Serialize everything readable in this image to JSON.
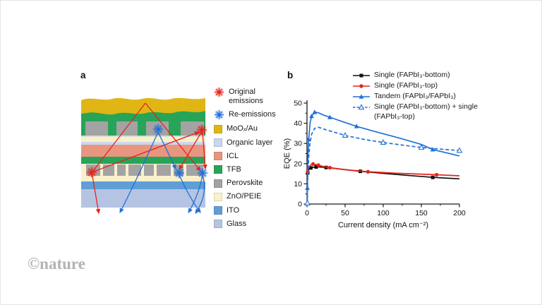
{
  "watermark": "©nature",
  "colors": {
    "emission_original": "#e8231c",
    "emission_re": "#2170d8",
    "moox_au": "#e0b614",
    "organic_layer": "#cbd7ee",
    "icl": "#e9957f",
    "tfb": "#27a457",
    "perovskite": "#a3a3a3",
    "zno_peie": "#faf0cc",
    "ito": "#5f9ed6",
    "glass": "#b5c4e3",
    "watermark": "#b3b3b3",
    "axis": "#1a1a1a"
  },
  "panel_a": {
    "label": "a",
    "emissions_legend": [
      {
        "label": "Original emissions",
        "color_key": "emission_original"
      },
      {
        "label": "Re-emissions",
        "color_key": "emission_re"
      }
    ],
    "layers_legend": [
      {
        "label": "MoOₓ/Au",
        "color_key": "moox_au"
      },
      {
        "label": "Organic layer",
        "color_key": "organic_layer"
      },
      {
        "label": "ICL",
        "color_key": "icl"
      },
      {
        "label": "TFB",
        "color_key": "tfb"
      },
      {
        "label": "Perovskite",
        "color_key": "perovskite"
      },
      {
        "label": "ZnO/PEIE",
        "color_key": "zno_peie"
      },
      {
        "label": "ITO",
        "color_key": "ito"
      },
      {
        "label": "Glass",
        "color_key": "glass"
      }
    ],
    "stack_order_top_to_bottom": [
      "MoOₓ/Au",
      "TFB",
      "Perovskite",
      "ZnO/PEIE",
      "Organic layer",
      "ICL",
      "TFB",
      "Perovskite",
      "ZnO/PEIE",
      "ITO",
      "Glass"
    ]
  },
  "panel_b": {
    "label": "b"
  },
  "chart_data": {
    "type": "line",
    "title": "",
    "xlabel": "Current density (mA cm⁻²)",
    "ylabel": "EQE (%)",
    "xlim": [
      0,
      200
    ],
    "ylim": [
      0,
      50
    ],
    "xticks": [
      0,
      50,
      100,
      150,
      200
    ],
    "yticks": [
      0,
      10,
      20,
      30,
      40,
      50
    ],
    "x_minor_ticks": [
      25,
      75,
      125,
      175
    ],
    "y_minor_ticks": [
      5,
      15,
      25,
      35,
      45
    ],
    "grid": false,
    "legend_position": "top-right",
    "series": [
      {
        "name": "Single (FAPbI₃-bottom)",
        "color": "#111111",
        "marker": "square",
        "line": "solid",
        "x": [
          0.8,
          1,
          1.5,
          2.5,
          4,
          6,
          10,
          15,
          25,
          40,
          70,
          100,
          135,
          165,
          200
        ],
        "y": [
          13.5,
          15.5,
          16.4,
          17.1,
          17.7,
          18.0,
          18.3,
          18.4,
          18.1,
          17.5,
          16.2,
          15.2,
          14.1,
          13.2,
          12.5
        ],
        "markers": [
          [
            1,
            15.5
          ],
          [
            5,
            17.9
          ],
          [
            12,
            18.35
          ],
          [
            25,
            18.1
          ],
          [
            70,
            16.2
          ],
          [
            165,
            13.2
          ]
        ]
      },
      {
        "name": "Single (FAPbI₃-top)",
        "color": "#e8231c",
        "marker": "circle",
        "line": "solid",
        "x": [
          0.8,
          1,
          1.5,
          2.5,
          4,
          6,
          8,
          12,
          20,
          30,
          50,
          80,
          120,
          170,
          200
        ],
        "y": [
          14.0,
          16.0,
          17.2,
          18.2,
          19.0,
          19.6,
          19.8,
          19.5,
          18.7,
          18.0,
          17.0,
          16.0,
          15.2,
          14.5,
          14.0
        ],
        "markers": [
          [
            1,
            16
          ],
          [
            8,
            19.8
          ],
          [
            15,
            19.2
          ],
          [
            30,
            18
          ],
          [
            80,
            16
          ],
          [
            170,
            14.5
          ]
        ]
      },
      {
        "name": "Tandem (FAPbI₃/FAPbI₃)",
        "color": "#2170d8",
        "marker": "triangle",
        "line": "solid",
        "x": [
          0.4,
          0.5,
          0.7,
          1,
          1.5,
          2.5,
          4,
          6,
          10,
          15,
          22,
          30,
          45,
          65,
          90,
          120,
          150,
          165,
          200
        ],
        "y": [
          0,
          8,
          14,
          20,
          27,
          33,
          40,
          43.5,
          45.5,
          45.2,
          44,
          43,
          41,
          38.5,
          35.8,
          32.8,
          29.5,
          27,
          23.8
        ],
        "markers": [
          [
            0.5,
            8
          ],
          [
            2,
            32
          ],
          [
            6,
            43.5
          ],
          [
            10,
            45.5
          ],
          [
            30,
            43
          ],
          [
            65,
            38.5
          ],
          [
            165,
            27
          ]
        ]
      },
      {
        "name": "Single (FAPbI₃-bottom) + single (FAPbI₃-top)",
        "color": "#2170d8",
        "marker": "triangle-open",
        "line": "dashed",
        "x": [
          0.4,
          0.6,
          1,
          2,
          3.5,
          6,
          10,
          15,
          25,
          50,
          75,
          100,
          125,
          150,
          175,
          200
        ],
        "y": [
          0.5,
          5,
          13,
          22,
          29,
          34.5,
          37.5,
          38,
          36.8,
          34,
          32,
          30.5,
          29.2,
          28,
          27.2,
          26.5
        ],
        "markers": [
          [
            0.5,
            0.5
          ],
          [
            50,
            34
          ],
          [
            100,
            30.5
          ],
          [
            150,
            28
          ],
          [
            200,
            26.5
          ]
        ]
      }
    ]
  }
}
